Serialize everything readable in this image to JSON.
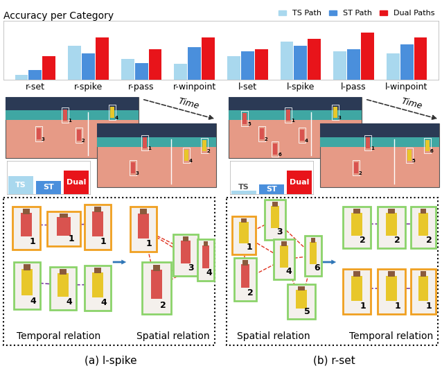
{
  "chart_data": [
    {
      "type": "bar",
      "title": "Accuracy per Category",
      "categories": [
        "r-set",
        "r-spike",
        "r-pass",
        "r-winpoint",
        "l-set",
        "l-spike",
        "l-pass",
        "l-winpoint"
      ],
      "series": [
        {
          "name": "TS Path",
          "color": "#a9d8ee",
          "values": [
            8,
            58,
            35,
            27,
            40,
            65,
            48,
            45
          ]
        },
        {
          "name": "ST Path",
          "color": "#4a8fdc",
          "values": [
            16,
            45,
            28,
            55,
            48,
            58,
            52,
            60
          ]
        },
        {
          "name": "Dual Paths",
          "color": "#e8141a",
          "values": [
            40,
            72,
            52,
            72,
            52,
            70,
            80,
            72
          ]
        }
      ],
      "ylim": [
        0,
        100
      ],
      "yticks": [],
      "tick_labels": "x",
      "legend": "upper right"
    },
    {
      "type": "bar",
      "categories": [
        "TS",
        "ST",
        "Dual"
      ],
      "values": [
        55,
        40,
        70
      ],
      "colors": [
        "#a9d8ee",
        "#4a8fdc",
        "#e8141a"
      ],
      "ylim": [
        0,
        100
      ],
      "yticks": [],
      "tick_labels": false
    },
    {
      "type": "bar",
      "categories": [
        "TS",
        "ST",
        "Dual"
      ],
      "values": [
        10,
        30,
        70
      ],
      "colors": [
        "#a9d8ee",
        "#4a8fdc",
        "#e8141a"
      ],
      "ylim": [
        0,
        100
      ],
      "yticks": [],
      "tick_labels": false
    }
  ],
  "panels": [
    {
      "caption": "(a) l-spike",
      "time_label": "Time",
      "photo_players": [
        [
          "1",
          "3",
          "4",
          "2"
        ],
        [
          "1",
          "3",
          "4",
          "2"
        ]
      ],
      "first": {
        "label": "Temporal relation",
        "players": [
          "1",
          "1",
          "1",
          "4",
          "4",
          "4"
        ]
      },
      "second": {
        "label": "Spatial relation",
        "players": [
          "1",
          "2",
          "3",
          "4"
        ]
      }
    },
    {
      "caption": "(b) r-set",
      "time_label": "Time",
      "photo_players": [
        [
          "1",
          "2",
          "3",
          "4",
          "5",
          "6"
        ],
        [
          "1",
          "2",
          "5",
          "6"
        ]
      ],
      "first": {
        "label": "Spatial relation",
        "players": [
          "1",
          "2",
          "3",
          "4",
          "5",
          "6"
        ]
      },
      "second": {
        "label": "Temporal relation",
        "players": [
          "2",
          "2",
          "2",
          "1",
          "1",
          "1"
        ]
      }
    }
  ]
}
